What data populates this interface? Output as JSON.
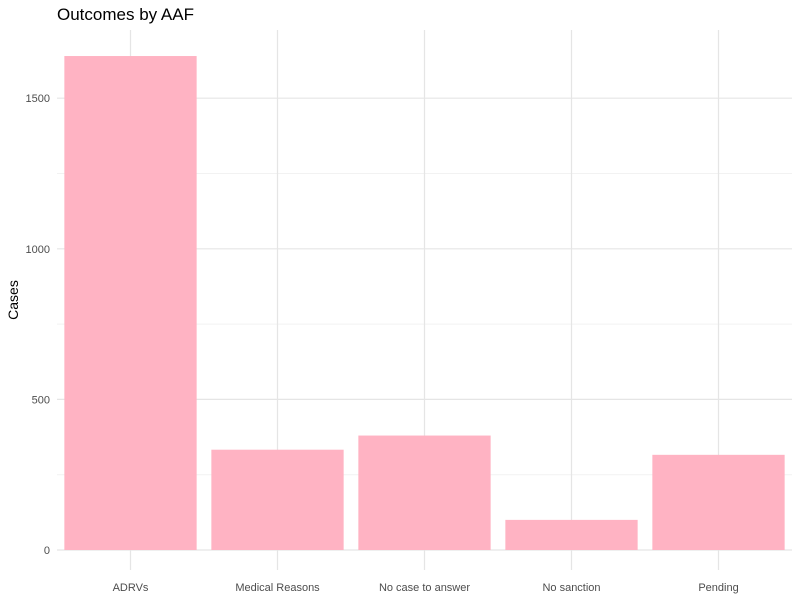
{
  "chart_data": {
    "type": "bar",
    "title": "Outcomes by AAF",
    "xlabel": "",
    "ylabel": "Cases",
    "categories": [
      "ADRVs",
      "Medical Reasons",
      "No case to answer",
      "No sanction",
      "Pending"
    ],
    "values": [
      1640,
      333,
      380,
      100,
      316
    ],
    "ylim": [
      0,
      1700
    ],
    "yticks": [
      0,
      500,
      1000,
      1500
    ],
    "yminor": [
      250,
      750,
      1250
    ],
    "grid": true,
    "bar_color": "#ffb3c3"
  }
}
